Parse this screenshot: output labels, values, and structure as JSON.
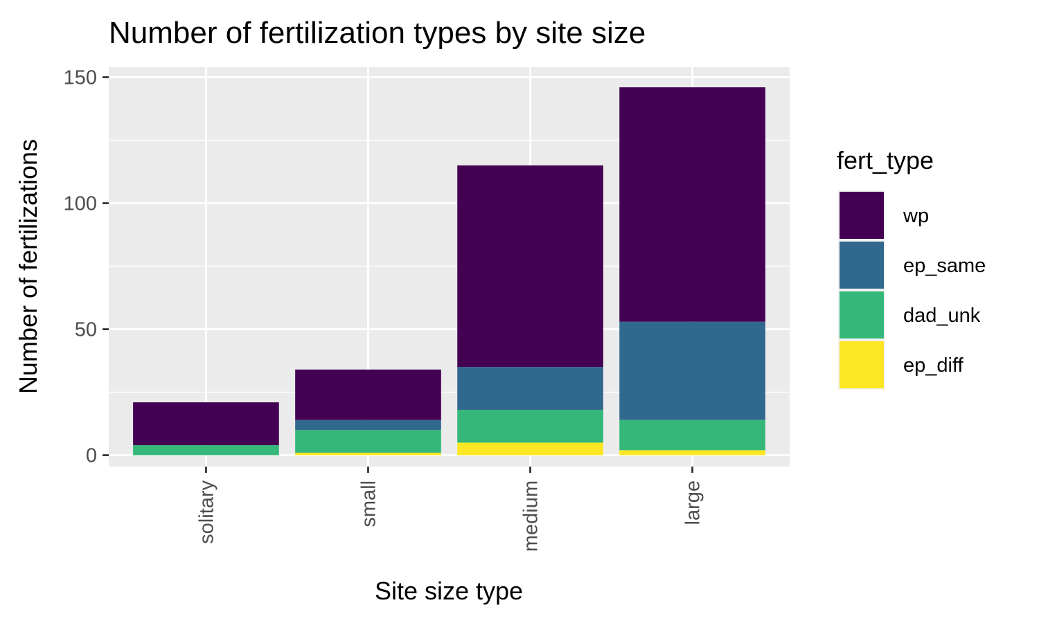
{
  "chart_data": {
    "type": "bar",
    "stacked": true,
    "title": "Number of fertilization types by site size",
    "xlabel": "Site size type",
    "ylabel": "Number of fertilizations",
    "categories": [
      "solitary",
      "small",
      "medium",
      "large"
    ],
    "ylim": [
      -4.5,
      154
    ],
    "yticks": [
      0,
      50,
      100,
      150
    ],
    "grid": true,
    "legend": {
      "title": "fert_type",
      "position": "right"
    },
    "series": [
      {
        "name": "ep_diff",
        "color": "#FDE725",
        "values": [
          0,
          1,
          5,
          2
        ]
      },
      {
        "name": "dad_unk",
        "color": "#35B779",
        "values": [
          4,
          9,
          13,
          12
        ]
      },
      {
        "name": "ep_same",
        "color": "#31688E",
        "values": [
          0,
          4,
          17,
          39
        ]
      },
      {
        "name": "wp",
        "color": "#440154",
        "values": [
          17,
          20,
          80,
          93
        ]
      }
    ],
    "legend_order": [
      "wp",
      "ep_same",
      "dad_unk",
      "ep_diff"
    ]
  }
}
